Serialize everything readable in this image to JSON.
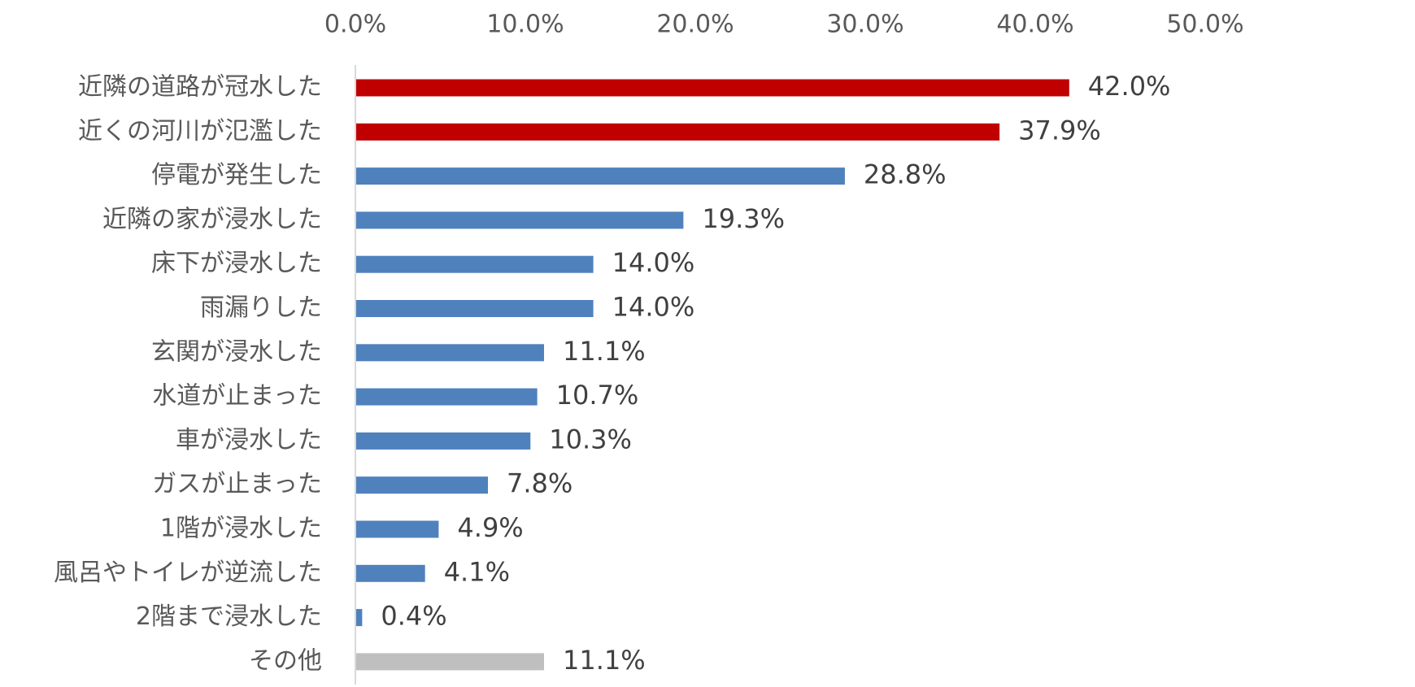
{
  "chart_data": {
    "type": "bar",
    "orientation": "horizontal",
    "categories": [
      "近隣の道路が冠水した",
      "近くの河川が氾濫した",
      "停電が発生した",
      "近隣の家が浸水した",
      "床下が浸水した",
      "雨漏りした",
      "玄関が浸水した",
      "水道が止まった",
      "車が浸水した",
      "ガスが止まった",
      "1階が浸水した",
      "風呂やトイレが逆流した",
      "2階まで浸水した",
      "その他"
    ],
    "values": [
      42.0,
      37.9,
      28.8,
      19.3,
      14.0,
      14.0,
      11.1,
      10.7,
      10.3,
      7.8,
      4.9,
      4.1,
      0.4,
      11.1
    ],
    "value_labels": [
      "42.0%",
      "37.9%",
      "28.8%",
      "19.3%",
      "14.0%",
      "14.0%",
      "11.1%",
      "10.7%",
      "10.3%",
      "7.8%",
      "4.9%",
      "4.1%",
      "0.4%",
      "11.1%"
    ],
    "bar_colors": [
      "#C00000",
      "#C00000",
      "#4F81BD",
      "#4F81BD",
      "#4F81BD",
      "#4F81BD",
      "#4F81BD",
      "#4F81BD",
      "#4F81BD",
      "#4F81BD",
      "#4F81BD",
      "#4F81BD",
      "#4F81BD",
      "#BFBFBF"
    ],
    "x_ticks": [
      "0.0%",
      "10.0%",
      "20.0%",
      "30.0%",
      "40.0%",
      "50.0%"
    ],
    "xlim": [
      0,
      50
    ],
    "x_axis_position": "top",
    "grid": false,
    "legend": "none",
    "title": "",
    "xlabel": "",
    "ylabel": ""
  }
}
